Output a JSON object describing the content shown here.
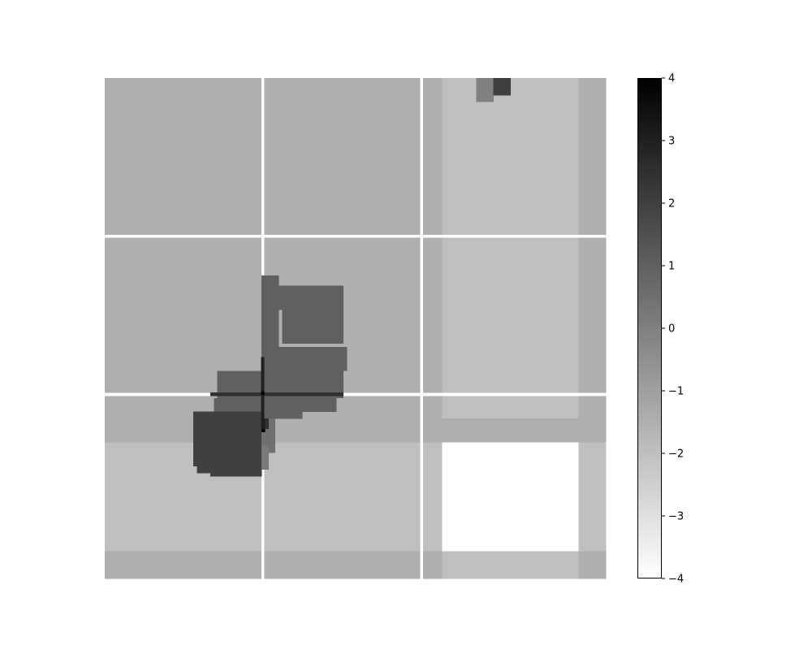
{
  "chart_data": {
    "type": "heatmap",
    "colormap": "gray_r",
    "vmin": -4,
    "vmax": 4,
    "colorbar_ticks": [
      "4",
      "3",
      "2",
      "1",
      "0",
      "−1",
      "−2",
      "−3",
      "−4"
    ],
    "grid": false,
    "title": "",
    "xlabel": "",
    "ylabel": "",
    "background_blocks": [
      {
        "cols": [
          0,
          45
        ],
        "rows": [
          0,
          49
        ],
        "value": -1.5
      },
      {
        "cols": [
          46,
          91
        ],
        "rows": [
          0,
          49
        ],
        "value": -1.5
      },
      {
        "cols": [
          92,
          98
        ],
        "rows": [
          0,
          49
        ],
        "value": -1.5
      },
      {
        "cols": [
          99,
          138
        ],
        "rows": [
          0,
          49
        ],
        "value": -2
      },
      {
        "cols": [
          139,
          146
        ],
        "rows": [
          0,
          49
        ],
        "value": -1.5
      },
      {
        "cols": [
          0,
          45
        ],
        "rows": [
          50,
          99
        ],
        "value": -1.5
      },
      {
        "cols": [
          46,
          91
        ],
        "rows": [
          50,
          99
        ],
        "value": -1.5
      },
      {
        "cols": [
          92,
          98
        ],
        "rows": [
          50,
          99
        ],
        "value": -1.5
      },
      {
        "cols": [
          99,
          138
        ],
        "rows": [
          50,
          99
        ],
        "value": -2
      },
      {
        "cols": [
          139,
          146
        ],
        "rows": [
          50,
          99
        ],
        "value": -1.5
      },
      {
        "cols": [
          0,
          45
        ],
        "rows": [
          100,
          106
        ],
        "value": -1.5
      },
      {
        "cols": [
          46,
          91
        ],
        "rows": [
          100,
          106
        ],
        "value": -1.5
      },
      {
        "cols": [
          92,
          98
        ],
        "rows": [
          100,
          106
        ],
        "value": -1.5
      },
      {
        "cols": [
          99,
          138
        ],
        "rows": [
          100,
          106
        ],
        "value": -1.5
      },
      {
        "cols": [
          139,
          146
        ],
        "rows": [
          100,
          106
        ],
        "value": -1.5
      },
      {
        "cols": [
          0,
          45
        ],
        "rows": [
          107,
          138
        ],
        "value": -2
      },
      {
        "cols": [
          46,
          91
        ],
        "rows": [
          107,
          138
        ],
        "value": -2
      },
      {
        "cols": [
          92,
          98
        ],
        "rows": [
          107,
          138
        ],
        "value": -2
      },
      {
        "cols": [
          99,
          138
        ],
        "rows": [
          107,
          138
        ],
        "value": -4
      },
      {
        "cols": [
          139,
          146
        ],
        "rows": [
          107,
          138
        ],
        "value": -2
      },
      {
        "cols": [
          0,
          45
        ],
        "rows": [
          139,
          146
        ],
        "value": -1.5
      },
      {
        "cols": [
          46,
          91
        ],
        "rows": [
          139,
          146
        ],
        "value": -1.5
      },
      {
        "cols": [
          92,
          98
        ],
        "rows": [
          139,
          146
        ],
        "value": -1.5
      },
      {
        "cols": [
          99,
          138
        ],
        "rows": [
          139,
          146
        ],
        "value": -2
      },
      {
        "cols": [
          139,
          146
        ],
        "rows": [
          139,
          146
        ],
        "value": -1.5
      }
    ],
    "separator_lines": [
      {
        "orientation": "vertical",
        "at": 46,
        "value": -4
      },
      {
        "orientation": "vertical",
        "at": 92.5,
        "value": -4
      },
      {
        "orientation": "horizontal",
        "at": 46,
        "value": -4
      },
      {
        "orientation": "horizontal",
        "at": 92.5,
        "value": -4
      }
    ],
    "regions": [
      {
        "cols": [
          46,
          51
        ],
        "rows": [
          58,
          88
        ],
        "value": 1
      },
      {
        "cols": [
          46,
          67
        ],
        "rows": [
          61,
          68
        ],
        "value": 1
      },
      {
        "cols": [
          52,
          70
        ],
        "rows": [
          61,
          78
        ],
        "value": 1
      },
      {
        "cols": [
          58,
          70
        ],
        "rows": [
          69,
          77
        ],
        "value": 1
      },
      {
        "cols": [
          46,
          71
        ],
        "rows": [
          79,
          86
        ],
        "value": 1
      },
      {
        "cols": [
          33,
          70
        ],
        "rows": [
          86,
          94
        ],
        "value": 1
      },
      {
        "cols": [
          32,
          68
        ],
        "rows": [
          94,
          98
        ],
        "value": 1
      },
      {
        "cols": [
          32,
          58
        ],
        "rows": [
          98,
          100
        ],
        "value": 1
      },
      {
        "cols": [
          26,
          46
        ],
        "rows": [
          98,
          114
        ],
        "value": 2
      },
      {
        "cols": [
          27,
          46
        ],
        "rows": [
          114,
          116
        ],
        "value": 2
      },
      {
        "cols": [
          31,
          46
        ],
        "rows": [
          116,
          117
        ],
        "value": 2
      },
      {
        "cols": [
          46,
          50
        ],
        "rows": [
          100,
          110
        ],
        "value": 0.5
      },
      {
        "cols": [
          46,
          48
        ],
        "rows": [
          108,
          115
        ],
        "value": 0.2
      },
      {
        "cols": [
          46,
          47
        ],
        "rows": [
          100,
          103
        ],
        "value": 3
      },
      {
        "cols": [
          47,
          48
        ],
        "rows": [
          100,
          103
        ],
        "value": 2.5
      },
      {
        "cols": [
          46,
          47
        ],
        "rows": [
          103,
          104
        ],
        "value": 4
      },
      {
        "cols": [
          109,
          114
        ],
        "rows": [
          0,
          7
        ],
        "value": 0
      },
      {
        "cols": [
          114,
          119
        ],
        "rows": [
          0,
          5
        ],
        "value": 2
      }
    ],
    "overlay_lines": [
      {
        "orientation": "horizontal",
        "at": 92.5,
        "from": 31,
        "to": 70,
        "value": 2.5
      },
      {
        "orientation": "vertical",
        "at": 46,
        "from": 82,
        "to": 103,
        "value": 3
      },
      {
        "orientation": "point",
        "x": 46,
        "y": 92,
        "value": 4
      }
    ]
  }
}
